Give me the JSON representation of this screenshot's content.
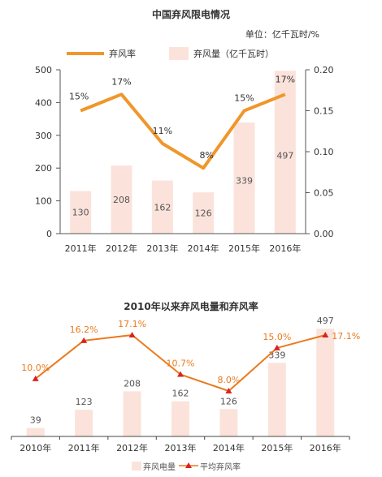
{
  "colors": {
    "bar": "#fbe3dc",
    "line1": "#f0962a",
    "line2": "#ea7a1c",
    "marker2": "#d9231f",
    "axis": "#444444",
    "grid_axis": "#555555",
    "text": "#333333",
    "bar_label": "#555555"
  },
  "chart_data": [
    {
      "type": "bar+line",
      "title": "中国弃风限电情况",
      "unit_note": "单位：亿千瓦时/%",
      "categories": [
        "2011年",
        "2012年",
        "2013年",
        "2014年",
        "2015年",
        "2016年"
      ],
      "legend": [
        "弃风率",
        "弃风量（亿千瓦时）"
      ],
      "legend_position": "top",
      "bars": {
        "name": "弃风量（亿千瓦时）",
        "values": [
          130,
          208,
          162,
          126,
          339,
          497
        ],
        "labels": [
          "130",
          "208",
          "162",
          "126",
          "339",
          "497"
        ]
      },
      "line": {
        "name": "弃风率",
        "values": [
          0.15,
          0.17,
          0.11,
          0.08,
          0.15,
          0.17
        ],
        "labels": [
          "15%",
          "17%",
          "11%",
          "8%",
          "15%",
          "17%"
        ]
      },
      "y_left": {
        "min": 0,
        "max": 500,
        "ticks": [
          "0",
          "100",
          "200",
          "300",
          "400",
          "500"
        ]
      },
      "y_right": {
        "min": 0,
        "max": 0.2,
        "ticks": [
          "0.00",
          "0.05",
          "0.10",
          "0.15",
          "0.20"
        ]
      },
      "grid": false
    },
    {
      "type": "bar+line",
      "title": "2010年以来弃风电量和弃风率",
      "categories": [
        "2010年",
        "2011年",
        "2012年",
        "2013年",
        "2014年",
        "2015年",
        "2016年"
      ],
      "legend": [
        "弃风电量",
        "平均弃风率"
      ],
      "legend_position": "bottom",
      "bars": {
        "name": "弃风电量",
        "values": [
          39,
          123,
          208,
          162,
          126,
          339,
          497
        ],
        "labels": [
          "39",
          "123",
          "208",
          "162",
          "126",
          "339",
          "497"
        ]
      },
      "line": {
        "name": "平均弃风率",
        "values": [
          10.0,
          16.2,
          17.1,
          10.7,
          8.0,
          15.0,
          17.1
        ],
        "labels": [
          "10.0%",
          "16.2%",
          "17.1%",
          "10.7%",
          "8.0%",
          "15.0%",
          "17.1%"
        ]
      },
      "grid": false
    }
  ]
}
